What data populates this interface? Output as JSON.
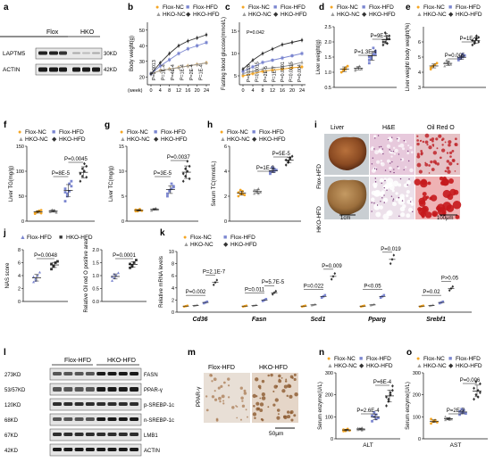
{
  "colors": {
    "flox_nc": "#f5a623",
    "hko_nc": "#9a9a9a",
    "flox_hfd": "#7b86d0",
    "hko_hfd": "#333333",
    "annot": "#111111"
  },
  "legend4": {
    "flox_nc": "Flox-NC",
    "flox_hfd": "Flox-HFD",
    "hko_nc": "HKO-NC",
    "hko_hfd": "HKO-HFD"
  },
  "legend2": {
    "flox_hfd": "Flox-HFD",
    "hko_hfd": "HKO-HFD"
  },
  "panels": {
    "a": {
      "letter": "a",
      "col_flox": "Flox",
      "col_hko": "HKO",
      "rows": [
        {
          "name": "LAPTM5",
          "size": "30KD"
        },
        {
          "name": "ACTIN",
          "size": "42KD"
        }
      ]
    },
    "b": {
      "letter": "b",
      "ylabel": "Body weight(g)",
      "xlabel": "(week)",
      "xticks": [
        "0",
        "4",
        "8",
        "12",
        "16",
        "20",
        "24"
      ],
      "yticks": [
        "20",
        "30",
        "40",
        "50"
      ],
      "pvals": [
        "P=0.0013",
        "P=1E-4",
        "P=4E-4",
        "P=1E-4",
        "P=2E-4",
        "P=1E-4"
      ]
    },
    "c": {
      "letter": "c",
      "ylabel": "Fasting blood glucose(mmol/L)",
      "xticks": [
        "0",
        "4",
        "8",
        "12",
        "16",
        "20",
        "24"
      ],
      "yticks": [
        "5",
        "10",
        "15"
      ],
      "pvals": [
        "P=0.042",
        "P=0.026",
        "P=0.0015",
        "P=2E-5",
        "P=1E-7",
        "P=0.0101",
        "P=0.0015",
        "P=0.004"
      ]
    },
    "d": {
      "letter": "d",
      "ylabel": "Liver weight(g)",
      "yticks": [
        "0.5",
        "1.0",
        "1.5",
        "2.0",
        "2.5"
      ],
      "pvals": [
        "P=1.3E-4",
        "P=9E-5"
      ]
    },
    "e": {
      "letter": "e",
      "ylabel": "Liver weight/ body weight(%)",
      "yticks": [
        "3",
        "4",
        "5",
        "6"
      ],
      "pvals": [
        "P=0.005",
        "P=1E-9"
      ]
    },
    "f": {
      "letter": "f",
      "ylabel": "Liver TG(mg/g)",
      "yticks": [
        "0",
        "50",
        "100",
        "150"
      ],
      "pvals": [
        "P=8E-5",
        "P=0.0045"
      ]
    },
    "g": {
      "letter": "g",
      "ylabel": "Liver TC(mg/g)",
      "yticks": [
        "0",
        "5",
        "10",
        "15"
      ],
      "pvals": [
        "P=3E-5",
        "P=0.0037"
      ]
    },
    "h": {
      "letter": "h",
      "ylabel": "Serum TC(mmol/L)",
      "yticks": [
        "0",
        "2",
        "4",
        "6"
      ],
      "pvals": [
        "P=1E-9",
        "P=5E-5"
      ]
    },
    "i": {
      "letter": "i",
      "col_liver": "Liver",
      "col_he": "H&E",
      "col_oro": "Oil Red O",
      "row1": "Flox-HFD",
      "row2": "HKO-HFD",
      "scale1": "1cm",
      "scale2": "100μm"
    },
    "j": {
      "letter": "j",
      "ylabel1": "NAS score",
      "yticks1": [
        "0",
        "2",
        "4",
        "6",
        "8"
      ],
      "pval1": "P=0.0048",
      "ylabel2": "Relative Oil red O positive area",
      "yticks2": [
        "0.0",
        "0.5",
        "1.0",
        "1.5",
        "2.0"
      ],
      "pval2": "P=0.0001"
    },
    "k": {
      "letter": "k",
      "ylabel": "Relative mRNA levels",
      "yticks": [
        "0",
        "2",
        "4",
        "6",
        "8",
        "10"
      ],
      "genes": [
        {
          "name": "Cd36",
          "p1": "P=0.002",
          "p2": "P=2.1E-7"
        },
        {
          "name": "Fasn",
          "p1": "P=0.011",
          "p2": "P=5.7E-5"
        },
        {
          "name": "Scd1",
          "p1": "P=0.022",
          "p2": "P=0.009"
        },
        {
          "name": "Pparg",
          "p1": "P<0.05",
          "p2": "P=0.019"
        },
        {
          "name": "Srebf1",
          "p1": "P=0.02",
          "p2": "P>0.05"
        }
      ]
    },
    "l": {
      "letter": "l",
      "col_flox": "Flox-HFD",
      "col_hko": "HKO-HFD",
      "rows": [
        {
          "size": "273KD",
          "name": "FASN"
        },
        {
          "size": "53/57KD",
          "name": "PPAR-γ"
        },
        {
          "size": "120KD",
          "name": "p-SREBP-1c"
        },
        {
          "size": "68KD",
          "name": "n-SREBP-1c"
        },
        {
          "size": "67KD",
          "name": "LMB1"
        },
        {
          "size": "42KD",
          "name": "ACTIN"
        }
      ]
    },
    "m": {
      "letter": "m",
      "col1": "Flox-HFD",
      "col2": "HKO-HFD",
      "rowlabel": "PPAR-γ",
      "scale": "50μm"
    },
    "n": {
      "letter": "n",
      "ylabel": "Serum enzyme(U/L)",
      "yticks": [
        "0",
        "100",
        "200",
        "300"
      ],
      "xlabel": "ALT",
      "pvals": [
        "P=2.6E-4",
        "P=6E-4"
      ]
    },
    "o": {
      "letter": "o",
      "ylabel": "Serum enzyme(U/L)",
      "yticks": [
        "0",
        "100",
        "200",
        "300"
      ],
      "xlabel": "AST",
      "pvals": [
        "P=2E-7",
        "P=0.006"
      ]
    }
  },
  "chart_data": [
    {
      "panel": "b",
      "type": "line",
      "x": [
        0,
        4,
        8,
        12,
        16,
        20,
        24
      ],
      "ylim": [
        15,
        55
      ],
      "xlabel": "(week)",
      "ylabel": "Body weight(g)",
      "series": [
        {
          "name": "Flox-NC",
          "values": [
            22,
            24,
            25,
            26,
            27,
            28,
            29
          ]
        },
        {
          "name": "HKO-NC",
          "values": [
            22,
            24,
            25,
            26,
            27,
            28,
            29
          ]
        },
        {
          "name": "Flox-HFD",
          "values": [
            22,
            27,
            31,
            35,
            38,
            40,
            42
          ]
        },
        {
          "name": "HKO-HFD",
          "values": [
            22,
            29,
            35,
            40,
            43,
            45,
            47
          ]
        }
      ]
    },
    {
      "panel": "c",
      "type": "line",
      "x": [
        0,
        4,
        8,
        12,
        16,
        20,
        24
      ],
      "ylim": [
        3,
        17
      ],
      "ylabel": "Fasting blood glucose(mmol/L)",
      "series": [
        {
          "name": "Flox-NC",
          "values": [
            5,
            5.5,
            6,
            6.3,
            6.5,
            6.8,
            7
          ]
        },
        {
          "name": "HKO-NC",
          "values": [
            5.5,
            6,
            6.5,
            6.8,
            7,
            7.5,
            8
          ]
        },
        {
          "name": "Flox-HFD",
          "values": [
            6,
            7,
            8,
            8.5,
            9,
            9.5,
            10
          ]
        },
        {
          "name": "HKO-HFD",
          "values": [
            6.5,
            8.5,
            10,
            11,
            12,
            12.5,
            13
          ]
        }
      ]
    },
    {
      "panel": "d",
      "type": "scatter",
      "categories": [
        "Flox-NC",
        "HKO-NC",
        "Flox-HFD",
        "HKO-HFD"
      ],
      "ylim": [
        0.5,
        2.5
      ],
      "ylabel": "Liver weight(g)",
      "groups": [
        [
          1.0,
          1.1,
          1.15,
          1.2,
          1.0,
          1.05,
          1.1,
          1.2
        ],
        [
          1.1,
          1.15,
          1.2,
          1.1,
          1.05,
          1.15,
          1.2,
          1.1
        ],
        [
          1.4,
          1.5,
          1.6,
          1.7,
          1.5,
          1.45,
          1.8,
          1.6,
          1.3
        ],
        [
          1.9,
          2.0,
          2.1,
          2.2,
          2.0,
          2.3,
          1.95,
          2.1
        ]
      ]
    },
    {
      "panel": "e",
      "type": "scatter",
      "categories": [
        "Flox-NC",
        "HKO-NC",
        "Flox-HFD",
        "HKO-HFD"
      ],
      "ylim": [
        3,
        7
      ],
      "ylabel": "Liver weight/ body weight(%)",
      "groups": [
        [
          4.2,
          4.4,
          4.5,
          4.6,
          4.3,
          4.4,
          4.5
        ],
        [
          4.4,
          4.6,
          4.7,
          4.5,
          4.6,
          4.8,
          4.5
        ],
        [
          4.8,
          4.9,
          5.0,
          5.1,
          4.9,
          5.0,
          5.2
        ],
        [
          5.8,
          6.0,
          6.2,
          6.3,
          6.1,
          5.9,
          6.4,
          6.0
        ]
      ]
    },
    {
      "panel": "f",
      "type": "scatter",
      "categories": [
        "Flox-NC",
        "HKO-NC",
        "Flox-HFD",
        "HKO-HFD"
      ],
      "ylim": [
        0,
        150
      ],
      "ylabel": "Liver TG(mg/g)",
      "groups": [
        [
          15,
          18,
          20,
          22,
          17,
          19,
          21,
          16
        ],
        [
          18,
          20,
          22,
          19,
          21,
          23,
          20,
          17
        ],
        [
          40,
          55,
          60,
          70,
          65,
          50,
          75,
          80,
          58
        ],
        [
          80,
          90,
          100,
          110,
          95,
          105,
          115,
          88
        ]
      ]
    },
    {
      "panel": "g",
      "type": "scatter",
      "categories": [
        "Flox-NC",
        "HKO-NC",
        "Flox-HFD",
        "HKO-HFD"
      ],
      "ylim": [
        0,
        15
      ],
      "ylabel": "Liver TC(mg/g)",
      "groups": [
        [
          2,
          2.2,
          2.4,
          2.1,
          2.3,
          2.0,
          2.2
        ],
        [
          2.2,
          2.4,
          2.5,
          2.3,
          2.1,
          2.4,
          2.6
        ],
        [
          5,
          6,
          6.5,
          7,
          5.5,
          6.2,
          7.5,
          6.8
        ],
        [
          8,
          9,
          10,
          11,
          9.5,
          10.5,
          12,
          8.5
        ]
      ]
    },
    {
      "panel": "h",
      "type": "scatter",
      "categories": [
        "Flox-NC",
        "HKO-NC",
        "Flox-HFD",
        "HKO-HFD"
      ],
      "ylim": [
        0,
        6
      ],
      "ylabel": "Serum TC(mmol/L)",
      "groups": [
        [
          2.0,
          2.2,
          2.4,
          2.1,
          2.3,
          2.5,
          2.2
        ],
        [
          2.2,
          2.4,
          2.6,
          2.3,
          2.5,
          2.4,
          2.2
        ],
        [
          3.8,
          4.0,
          4.2,
          4.1,
          3.9,
          4.3,
          4.0
        ],
        [
          4.5,
          4.8,
          5.0,
          5.2,
          4.9,
          4.7,
          5.1
        ]
      ]
    },
    {
      "panel": "j-nas",
      "type": "scatter",
      "categories": [
        "Flox-HFD",
        "HKO-HFD"
      ],
      "ylim": [
        0,
        8
      ],
      "ylabel": "NAS score",
      "groups": [
        [
          3,
          3.5,
          4,
          4.5,
          3.8,
          3.2
        ],
        [
          5,
          5.5,
          6,
          6.2,
          5.8,
          5.4
        ]
      ]
    },
    {
      "panel": "j-oro",
      "type": "scatter",
      "categories": [
        "Flox-HFD",
        "HKO-HFD"
      ],
      "ylim": [
        0,
        2
      ],
      "ylabel": "Relative Oil red O positive area",
      "groups": [
        [
          0.8,
          0.9,
          1.0,
          1.1,
          0.95,
          1.05
        ],
        [
          1.3,
          1.4,
          1.5,
          1.6,
          1.45,
          1.35
        ]
      ]
    },
    {
      "panel": "k",
      "type": "scatter",
      "ylim": [
        0,
        10
      ],
      "ylabel": "Relative mRNA levels",
      "categories": [
        "Cd36",
        "Fasn",
        "Scd1",
        "Pparg",
        "Srebf1"
      ],
      "series": [
        {
          "name": "Flox-NC",
          "values": [
            1,
            1,
            1,
            1,
            1
          ]
        },
        {
          "name": "HKO-NC",
          "values": [
            1.1,
            1.1,
            1.2,
            1.2,
            1.1
          ]
        },
        {
          "name": "Flox-HFD",
          "values": [
            1.6,
            2.0,
            2.6,
            2.6,
            1.6
          ]
        },
        {
          "name": "HKO-HFD",
          "values": [
            4.9,
            3.2,
            5.9,
            8.7,
            3.9
          ]
        }
      ]
    },
    {
      "panel": "n",
      "type": "scatter",
      "categories": [
        "Flox-NC",
        "HKO-NC",
        "Flox-HFD",
        "HKO-HFD"
      ],
      "ylim": [
        0,
        300
      ],
      "ylabel": "Serum enzyme(U/L)",
      "xlabel": "ALT",
      "groups": [
        [
          35,
          40,
          45,
          38,
          42,
          36,
          44
        ],
        [
          40,
          45,
          50,
          42,
          48,
          46,
          38
        ],
        [
          80,
          100,
          110,
          95,
          105,
          120,
          90
        ],
        [
          150,
          180,
          200,
          220,
          190,
          170,
          210,
          240
        ]
      ]
    },
    {
      "panel": "o",
      "type": "scatter",
      "categories": [
        "Flox-NC",
        "HKO-NC",
        "Flox-HFD",
        "HKO-HFD"
      ],
      "ylim": [
        0,
        300
      ],
      "ylabel": "Serum enzyme(U/L)",
      "xlabel": "AST",
      "groups": [
        [
          70,
          80,
          85,
          75,
          90,
          78,
          82
        ],
        [
          85,
          90,
          95,
          88,
          100,
          92,
          86
        ],
        [
          110,
          120,
          130,
          115,
          125,
          135,
          118
        ],
        [
          180,
          200,
          220,
          250,
          230,
          260,
          190,
          210
        ]
      ]
    }
  ]
}
